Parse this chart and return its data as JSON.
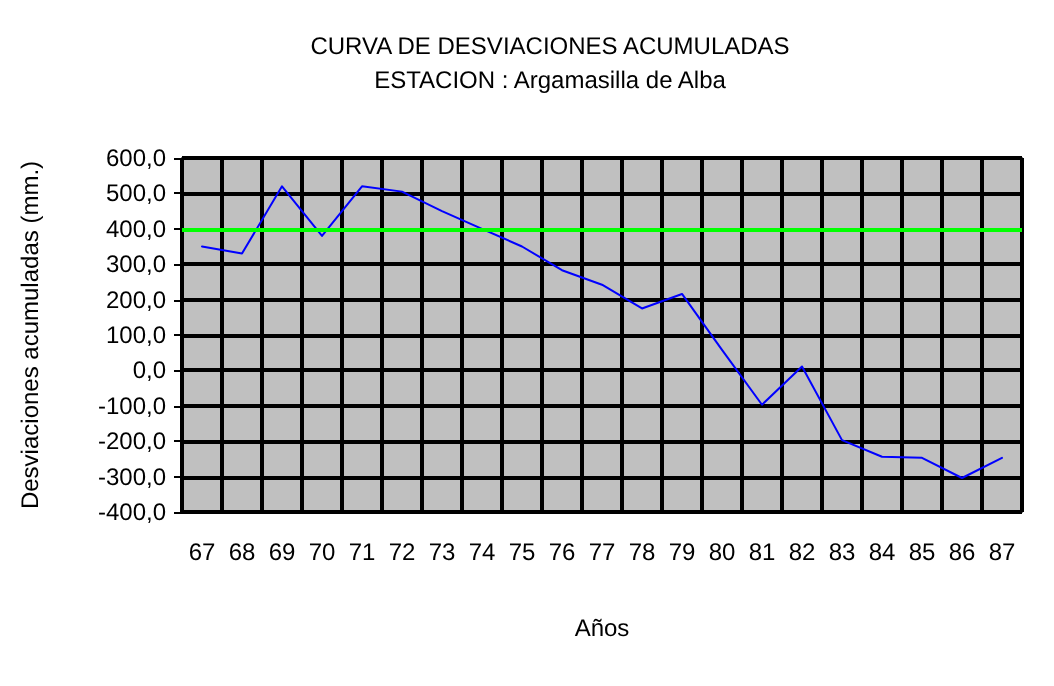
{
  "chart_data": {
    "type": "line",
    "title": "CURVA DE DESVIACIONES ACUMULADAS",
    "subtitle": "ESTACION : Argamasilla de Alba",
    "xlabel": "Años",
    "ylabel": "Desviaciones acumuladas (mm.)",
    "categories": [
      "67",
      "68",
      "69",
      "70",
      "71",
      "72",
      "73",
      "74",
      "75",
      "76",
      "77",
      "78",
      "79",
      "80",
      "81",
      "82",
      "83",
      "84",
      "85",
      "86",
      "87"
    ],
    "series": [
      {
        "color": "#0000ff",
        "values": [
          350,
          330,
          520,
          380,
          520,
          505,
          450,
          400,
          350,
          283,
          242,
          175,
          216,
          58,
          -97,
          11,
          -197,
          -244,
          -247,
          -304,
          -247
        ]
      }
    ],
    "ylim": [
      -400,
      600
    ],
    "yticks": [
      {
        "value": -400,
        "label": "-400,0"
      },
      {
        "value": -300,
        "label": "-300,0"
      },
      {
        "value": -200,
        "label": "-200,0"
      },
      {
        "value": -100,
        "label": "-100,0"
      },
      {
        "value": 0,
        "label": "0,0"
      },
      {
        "value": 100,
        "label": "100,0"
      },
      {
        "value": 200,
        "label": "200,0"
      },
      {
        "value": 300,
        "label": "300,0"
      },
      {
        "value": 400,
        "label": "400,0"
      },
      {
        "value": 500,
        "label": "500,0"
      },
      {
        "value": 600,
        "label": "600,0"
      }
    ],
    "ref_lines": [
      {
        "axis": "y",
        "value": 400,
        "color": "#00ff00"
      }
    ],
    "grid": true,
    "marker": "none",
    "line_style": "solid"
  }
}
